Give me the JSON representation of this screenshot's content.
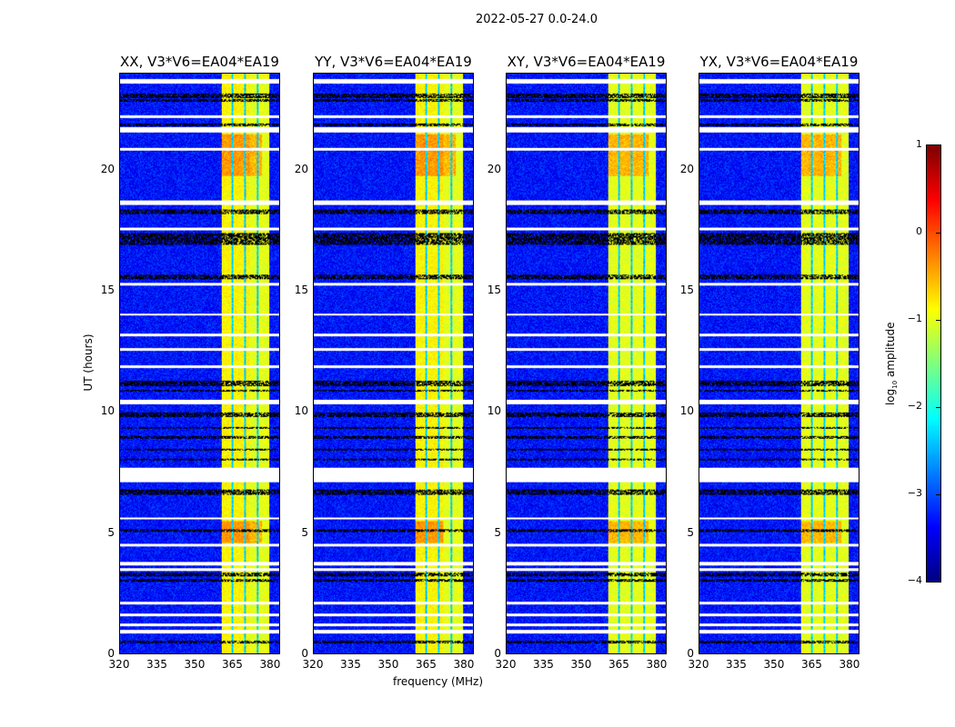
{
  "chart_data": {
    "type": "heatmap",
    "title": "2022-05-27 0.0-24.0",
    "xlabel": "frequency (MHz)",
    "ylabel": "UT (hours)",
    "xlim": [
      320,
      384
    ],
    "ylim": [
      0,
      24
    ],
    "xticks": [
      "320",
      "335",
      "350",
      "365",
      "380"
    ],
    "xtick_values": [
      320,
      335,
      350,
      365,
      380
    ],
    "yticks": [
      "0",
      "5",
      "10",
      "15",
      "20"
    ],
    "ytick_values": [
      0,
      5,
      10,
      15,
      20
    ],
    "panels": [
      {
        "title": "XX, V3*V6=EA04*EA19"
      },
      {
        "title": "YY, V3*V6=EA04*EA19"
      },
      {
        "title": "XY, V3*V6=EA04*EA19"
      },
      {
        "title": "YX, V3*V6=EA04*EA19"
      }
    ],
    "colorbar": {
      "label_main": "log",
      "label_sub": "10",
      "label_rest": " amplitude",
      "range": [
        -4,
        1
      ],
      "ticks": [
        "1",
        "0",
        "−1",
        "−2",
        "−3",
        "−4"
      ],
      "tick_values": [
        1,
        0,
        -1,
        -2,
        -3,
        -4
      ],
      "colormap": "jet"
    },
    "signal_band_mhz": [
      360.5,
      380
    ],
    "band_gaps_mhz": [
      365,
      370,
      375
    ],
    "background_log_amplitude": -3.3,
    "band_log_amplitude": -1.0,
    "bright_hours": [
      [
        19.8,
        21.5
      ],
      [
        4.6,
        5.5
      ]
    ],
    "flagged_white_hours": [
      [
        23.6,
        23.8
      ],
      [
        22.2,
        22.3
      ],
      [
        21.6,
        21.8
      ],
      [
        20.85,
        20.95
      ],
      [
        18.6,
        18.75
      ],
      [
        17.55,
        17.65
      ],
      [
        15.25,
        15.35
      ],
      [
        14.0,
        14.1
      ],
      [
        13.15,
        13.25
      ],
      [
        12.55,
        12.65
      ],
      [
        11.85,
        11.95
      ],
      [
        10.35,
        10.5
      ],
      [
        7.1,
        7.7
      ],
      [
        5.55,
        5.65
      ],
      [
        4.45,
        4.55
      ],
      [
        3.65,
        3.8
      ],
      [
        3.45,
        3.55
      ],
      [
        2.05,
        2.15
      ],
      [
        1.55,
        1.65
      ],
      [
        1.15,
        1.25
      ],
      [
        0.85,
        1.0
      ]
    ],
    "flagged_black_hours": [
      [
        23.0,
        23.2
      ],
      [
        22.85,
        22.95
      ],
      [
        21.85,
        21.95
      ],
      [
        18.2,
        18.4
      ],
      [
        16.95,
        17.4
      ],
      [
        15.5,
        15.7
      ],
      [
        11.1,
        11.3
      ],
      [
        10.85,
        10.95
      ],
      [
        9.8,
        10.0
      ],
      [
        9.3,
        9.4
      ],
      [
        8.9,
        9.0
      ],
      [
        8.4,
        8.5
      ],
      [
        8.0,
        8.1
      ],
      [
        6.6,
        6.8
      ],
      [
        5.05,
        5.15
      ],
      [
        3.2,
        3.35
      ],
      [
        3.0,
        3.1
      ],
      [
        0.45,
        0.55
      ]
    ]
  }
}
